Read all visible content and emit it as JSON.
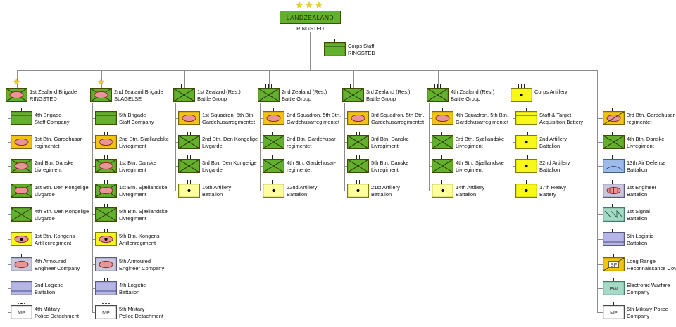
{
  "title": {
    "stars": "★★★",
    "name": "LANDZEALAND",
    "location": "RINGSTED"
  },
  "corps_staff": {
    "line1": "Corps Staff",
    "line2": "RINGSTED",
    "symbol": "staff-green",
    "echelon": "I"
  },
  "colors": {
    "green": "#63b02c",
    "greenBorder": "#3e4d00",
    "gold": "#f1c411",
    "goldBorder": "#806600",
    "brightYellow": "#f8f818",
    "paleYellow": "#ffff9e",
    "yellowBorder": "#7f7f00",
    "salmon": "#e79598",
    "salmonBorder": "#8e2d31",
    "lavender": "#b5b5e8",
    "greyLav": "#c8c8dc",
    "lavBorder": "#5a5a85",
    "airBlue": "#9cbbe9",
    "airBorder": "#3f5f92",
    "teal": "#a4dac6",
    "tealBorder": "#417e66",
    "white": "#ffffff",
    "whiteBorder": "#4a4a4a",
    "dark": "#2f3a05",
    "line": "#8c8c8c",
    "text": "#111111",
    "star": "#f0d012"
  },
  "columns": [
    {
      "head": {
        "line1": "1st Zealand Brigade",
        "line2": "RINGSTED",
        "symbol": "mech-inf",
        "echelon": "star"
      },
      "units": [
        {
          "line1": "4th Brigade",
          "line2": "Staff Company",
          "symbol": "staff-green",
          "echelon": "I"
        },
        {
          "line1": "1st Btn. Gardehusar-",
          "line2": "regimentet",
          "symbol": "armor",
          "echelon": "II"
        },
        {
          "line1": "2nd Btn. Danske",
          "line2": "Livregiment",
          "symbol": "mech-inf",
          "echelon": "II"
        },
        {
          "line1": "1st Btn. Den Kongelige",
          "line2": "Livgarde",
          "symbol": "mech-inf",
          "echelon": "II"
        },
        {
          "line1": "4th Btn. Den Kongelige",
          "line2": "Livgarde",
          "symbol": "inf",
          "echelon": "II"
        },
        {
          "line1": "1st Btn. Kongens",
          "line2": "Artilleriregiment",
          "symbol": "armored-arty",
          "echelon": "II"
        },
        {
          "line1": "4th Armoured",
          "line2": "Engineer Company",
          "symbol": "armored-eng",
          "echelon": "I"
        },
        {
          "line1": "2nd Logistic",
          "line2": "Battalion",
          "symbol": "logistic",
          "echelon": "II"
        },
        {
          "line1": "4th Military",
          "line2": "Police Detachment",
          "symbol": "mp",
          "echelon": "dots",
          "symbol_text": "MP"
        }
      ]
    },
    {
      "head": {
        "line1": "2nd Zealand Brigade",
        "line2": "SLAGELSE",
        "symbol": "mech-inf",
        "echelon": "star"
      },
      "units": [
        {
          "line1": "5th Brigade",
          "line2": "Staff Company",
          "symbol": "staff-green",
          "echelon": "I"
        },
        {
          "line1": "2nd Btn. Sjællandske",
          "line2": "Livregiment",
          "symbol": "armor",
          "echelon": "II"
        },
        {
          "line1": "1st Btn. Danske",
          "line2": "Livregiment",
          "symbol": "mech-inf",
          "echelon": "II"
        },
        {
          "line1": "1st Btn. Sjællandske",
          "line2": "Livregiment",
          "symbol": "mech-inf",
          "echelon": "II"
        },
        {
          "line1": "5th Btn. Sjællandske",
          "line2": "Livregiment",
          "symbol": "inf",
          "echelon": "II"
        },
        {
          "line1": "5th Btn. Kongens",
          "line2": "Artilleriregiment",
          "symbol": "armored-arty",
          "echelon": "II"
        },
        {
          "line1": "5th Armoured",
          "line2": "Engineer Company",
          "symbol": "armored-eng",
          "echelon": "I"
        },
        {
          "line1": "4th Logistic",
          "line2": "Battalion",
          "symbol": "logistic",
          "echelon": "II"
        },
        {
          "line1": "5th Military",
          "line2": "Police Detachment",
          "symbol": "mp",
          "echelon": "dots",
          "symbol_text": "MP"
        }
      ]
    },
    {
      "head": {
        "line1": "1st Zealand (Res.)",
        "line2": "Battle Group",
        "symbol": "inf",
        "echelon": "III"
      },
      "units": [
        {
          "line1": "1st Squadron, 5th Btn.",
          "line2": "Gardehusarregimentet",
          "symbol": "armor",
          "echelon": "I"
        },
        {
          "line1": "2nd Btn. Den Kongelige",
          "line2": "Livgarde",
          "symbol": "inf",
          "echelon": "II"
        },
        {
          "line1": "3rd Btn. Den Kongelige",
          "line2": "Livgarde",
          "symbol": "inf",
          "echelon": "II"
        },
        {
          "line1": "16th Artillery",
          "line2": "Battalion",
          "symbol": "arty-pale",
          "echelon": "II"
        }
      ]
    },
    {
      "head": {
        "line1": "2nd Zealand (Res.)",
        "line2": "Battle Group",
        "symbol": "inf",
        "echelon": "III"
      },
      "units": [
        {
          "line1": "2nd Squadron, 5th Btn.",
          "line2": "Gardehusarregimentet",
          "symbol": "armor",
          "echelon": "I"
        },
        {
          "line1": "2nd Btn. Gardehusar-",
          "line2": "regimentet",
          "symbol": "inf",
          "echelon": "II"
        },
        {
          "line1": "4th Btn. Gardehusar-",
          "line2": "regimentet",
          "symbol": "inf",
          "echelon": "II"
        },
        {
          "line1": "22nd Artillery",
          "line2": "Battalion",
          "symbol": "arty-pale",
          "echelon": "II"
        }
      ]
    },
    {
      "head": {
        "line1": "3rd Zealand (Res.)",
        "line2": "Battle Group",
        "symbol": "inf",
        "echelon": "III"
      },
      "units": [
        {
          "line1": "3rd Squadron, 5th Btn.",
          "line2": "Gardehusarregimentet",
          "symbol": "armor",
          "echelon": "I"
        },
        {
          "line1": "3rd Btn. Danske",
          "line2": "Livregiment",
          "symbol": "inf",
          "echelon": "II"
        },
        {
          "line1": "5th Btn. Danske",
          "line2": "Livregiment",
          "symbol": "inf",
          "echelon": "II"
        },
        {
          "line1": "21st Artillery",
          "line2": "Battalion",
          "symbol": "arty-pale",
          "echelon": "II"
        }
      ]
    },
    {
      "head": {
        "line1": "4th Zealand (Res.)",
        "line2": "Battle Group",
        "symbol": "inf",
        "echelon": "III"
      },
      "units": [
        {
          "line1": "4th Squadron, 5th Btn.",
          "line2": "Gardehusarregimentet",
          "symbol": "armor",
          "echelon": "I"
        },
        {
          "line1": "3rd Btn. Sjællandske",
          "line2": "Livregiment",
          "symbol": "inf",
          "echelon": "II"
        },
        {
          "line1": "4th Btn. Sjællandske",
          "line2": "Livregiment",
          "symbol": "inf",
          "echelon": "II"
        },
        {
          "line1": "14th Artillery",
          "line2": "Battalion",
          "symbol": "arty-pale",
          "echelon": "II"
        }
      ]
    },
    {
      "head": {
        "line1": "Corps Artillery",
        "line2": "",
        "symbol": "arty-yellow",
        "echelon": "III"
      },
      "units": [
        {
          "line1": "Staff & Target",
          "line2": "Acquisition Battery",
          "symbol": "staff-yellow",
          "echelon": "I"
        },
        {
          "line1": "2nd Artillery",
          "line2": "Battalion",
          "symbol": "arty-yellow",
          "echelon": "II"
        },
        {
          "line1": "32nd Artillery",
          "line2": "Battalion",
          "symbol": "arty-yellow",
          "echelon": "II"
        },
        {
          "line1": "17th Heavy",
          "line2": "Battery",
          "symbol": "arty-yellow",
          "echelon": "I"
        }
      ]
    },
    {
      "head": null,
      "units": [
        {
          "line1": "3rd Btn. Gardehusar-",
          "line2": "regimentet",
          "symbol": "recon",
          "echelon": "II"
        },
        {
          "line1": "4th Btn. Danske",
          "line2": "Livregiment",
          "symbol": "inf",
          "echelon": "II"
        },
        {
          "line1": "13th Air Defense",
          "line2": "Battalion",
          "symbol": "air-def",
          "echelon": "II"
        },
        {
          "line1": "1st Engineer",
          "line2": "Battalion",
          "symbol": "engineer",
          "echelon": "II"
        },
        {
          "line1": "1st Signal",
          "line2": "Battalion",
          "symbol": "signal",
          "echelon": "II"
        },
        {
          "line1": "6th Logistic",
          "line2": "Battalion",
          "symbol": "logistic",
          "echelon": "II"
        },
        {
          "line1": "Long Range",
          "line2": "Reconnaissance Coy.",
          "symbol": "sf",
          "echelon": "I",
          "symbol_text": "SF"
        },
        {
          "line1": "Electronic Warfare",
          "line2": "Company",
          "symbol": "ew",
          "echelon": "I",
          "symbol_text": "EW"
        },
        {
          "line1": "6th Military Police",
          "line2": "Company",
          "symbol": "mp",
          "echelon": "I",
          "symbol_text": "MP"
        }
      ]
    }
  ]
}
